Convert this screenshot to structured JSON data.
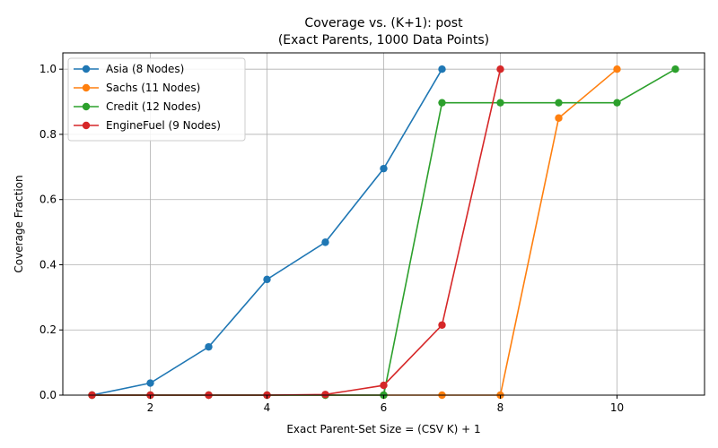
{
  "chart_data": {
    "type": "line",
    "title": "Coverage vs. (K+1): post",
    "subtitle": "(Exact Parents, 1000 Data Points)",
    "xlabel": "Exact Parent-Set Size = (CSV K) + 1",
    "ylabel": "Coverage Fraction",
    "xlim": [
      0.5,
      11.5
    ],
    "ylim": [
      0,
      1.05
    ],
    "xticks": [
      2,
      4,
      6,
      8,
      10
    ],
    "yticks": [
      0.0,
      0.2,
      0.4,
      0.6,
      0.8,
      1.0
    ],
    "xtick_labels": [
      "2",
      "4",
      "6",
      "8",
      "10"
    ],
    "ytick_labels": [
      "0.0",
      "0.2",
      "0.4",
      "0.6",
      "0.8",
      "1.0"
    ],
    "grid": true,
    "legend_position": "top-left",
    "series": [
      {
        "name": "Asia (8 Nodes)",
        "color": "#1f77b4",
        "x": [
          1,
          2,
          3,
          4,
          5,
          6,
          7
        ],
        "y": [
          0.0,
          0.037,
          0.148,
          0.355,
          0.469,
          0.695,
          1.0
        ]
      },
      {
        "name": "Sachs (11 Nodes)",
        "color": "#ff7f0e",
        "x": [
          1,
          2,
          3,
          4,
          5,
          6,
          7,
          8,
          9,
          10
        ],
        "y": [
          0.0,
          0.0,
          0.0,
          0.0,
          0.0,
          0.0,
          0.0,
          0.0,
          0.85,
          1.0
        ]
      },
      {
        "name": "Credit (12 Nodes)",
        "color": "#2ca02c",
        "x": [
          1,
          2,
          3,
          4,
          5,
          6,
          7,
          8,
          9,
          10,
          11
        ],
        "y": [
          0.0,
          0.0,
          0.0,
          0.0,
          0.0,
          0.0,
          0.897,
          0.897,
          0.897,
          0.897,
          1.0
        ]
      },
      {
        "name": "EngineFuel (9 Nodes)",
        "color": "#d62728",
        "x": [
          1,
          2,
          3,
          4,
          5,
          6,
          7,
          8
        ],
        "y": [
          0.0,
          0.0,
          0.0,
          0.0,
          0.002,
          0.03,
          0.215,
          1.0
        ]
      }
    ]
  }
}
